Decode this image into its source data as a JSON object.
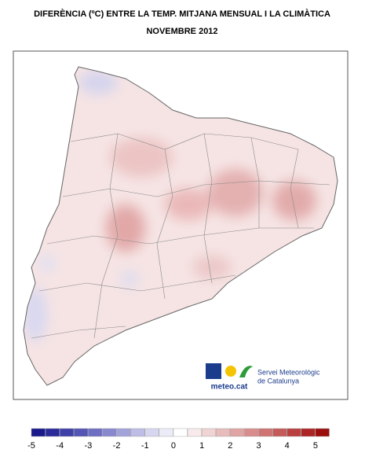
{
  "header": {
    "title": "DIFERÈNCIA (ºC) ENTRE LA TEMP. MITJANA MENSUAL I LA CLIMÀTICA",
    "subtitle": "NOVEMBRE 2012"
  },
  "logo": {
    "site": "meteo.cat",
    "line1": "Servei Meteorològic",
    "line2": "de Catalunya"
  },
  "legend": {
    "ticks": [
      -5,
      -4,
      -3,
      -2,
      -1,
      0,
      1,
      2,
      3,
      4,
      5
    ],
    "colors": [
      "#1a1a8c",
      "#2a2a9a",
      "#3f3fa8",
      "#5555b5",
      "#6e6ec2",
      "#8888cf",
      "#a3a3db",
      "#bdbde6",
      "#d6d6f0",
      "#ececf8",
      "#ffffff",
      "#f8eaea",
      "#f0d4d4",
      "#e8bcbc",
      "#e0a4a4",
      "#d88c8c",
      "#cf7373",
      "#c55a5a",
      "#ba4040",
      "#ad2626",
      "#9c0d0d"
    ]
  }
}
